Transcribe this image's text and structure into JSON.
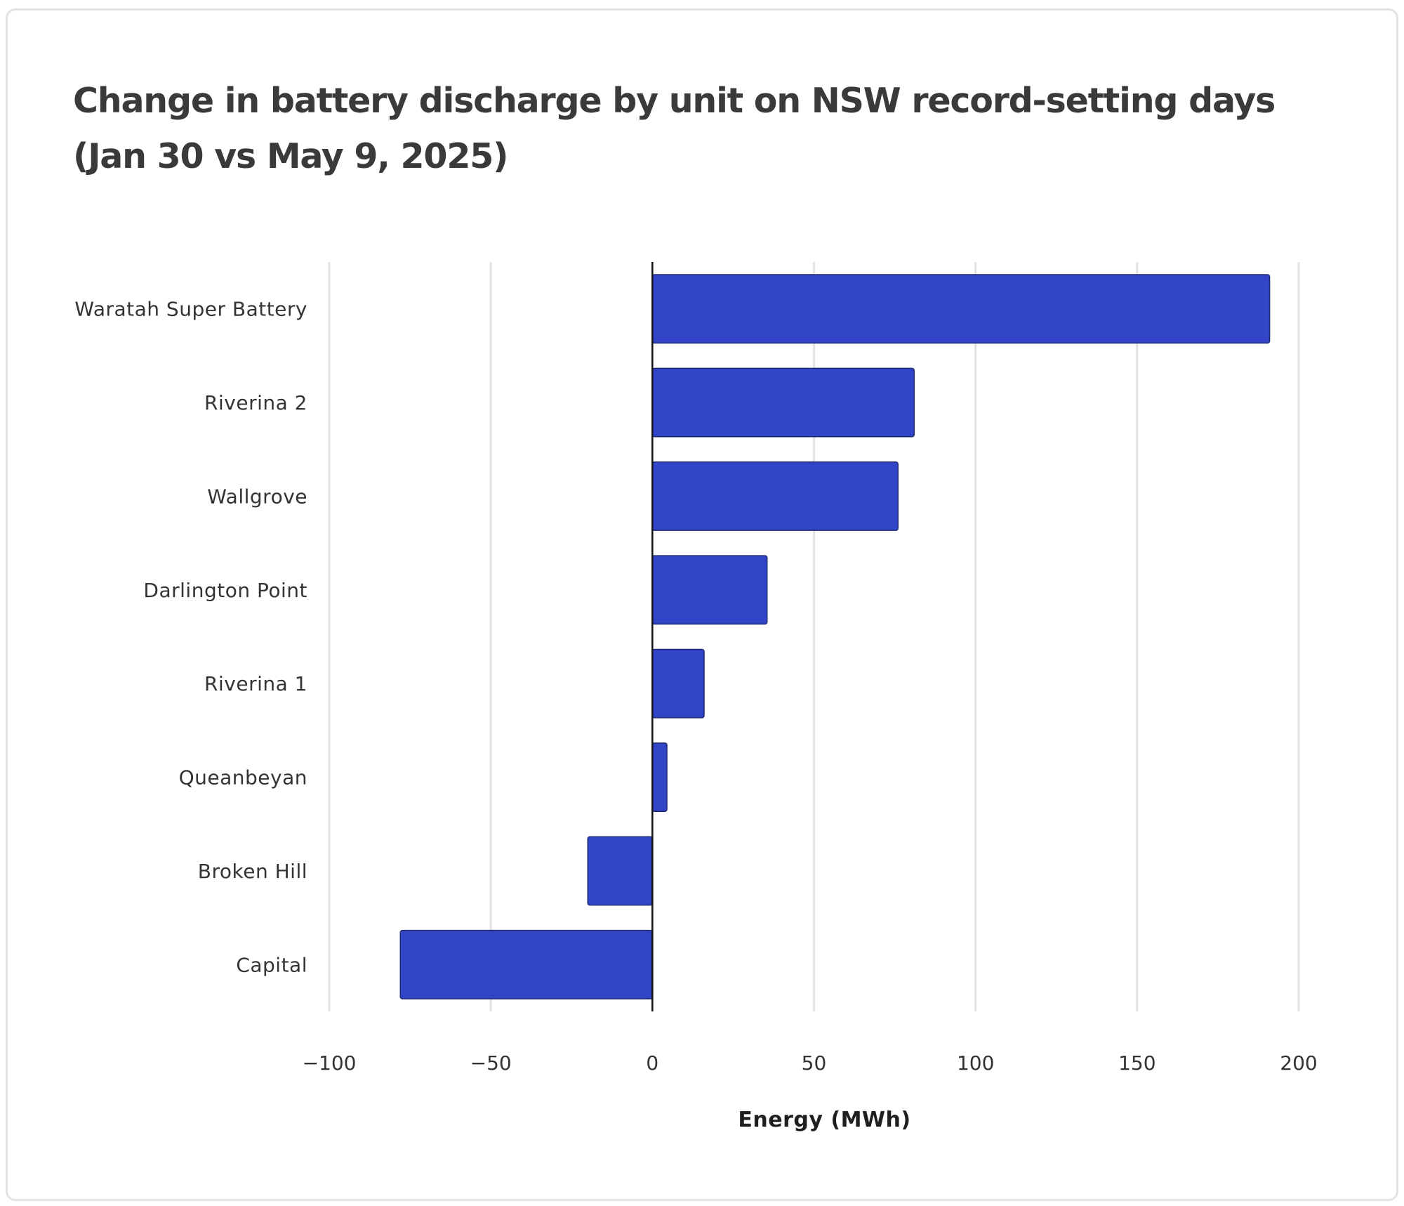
{
  "chart_data": {
    "type": "bar",
    "orientation": "horizontal",
    "title": "Change in battery discharge by unit on NSW record-setting days (Jan 30 vs May 9, 2025)",
    "categories": [
      "Waratah Super Battery",
      "Riverina 2",
      "Wallgrove",
      "Darlington Point",
      "Riverina 1",
      "Queanbeyan",
      "Broken Hill",
      "Capital"
    ],
    "values": [
      191,
      81,
      76,
      35.5,
      16,
      4.5,
      -20,
      -78
    ],
    "xlabel": "Energy (MWh)",
    "ylabel": "",
    "xlim": [
      -100,
      200
    ],
    "xticks": [
      -100,
      -50,
      0,
      50,
      100,
      150,
      200
    ],
    "bar_color": "#3244c8",
    "grid": "vertical"
  }
}
